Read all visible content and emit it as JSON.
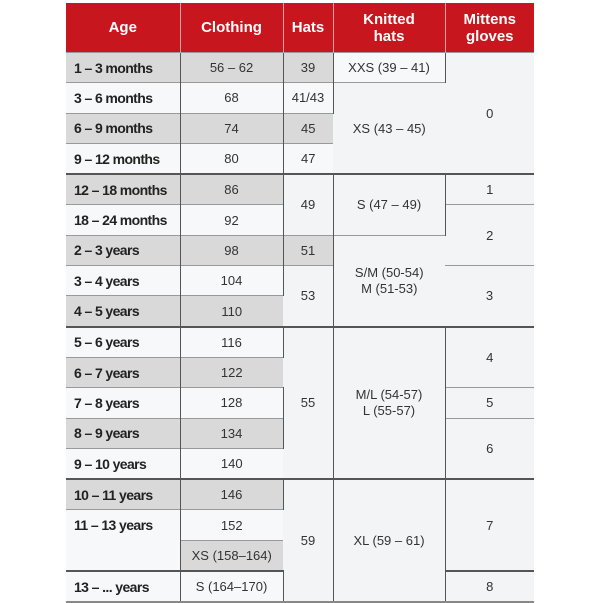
{
  "headers": {
    "age": "Age",
    "clothing": "Clothing",
    "hats": "Hats",
    "knitted_line1": "Knitted",
    "knitted_line2": "hats",
    "mittens_line1": "Mittens",
    "mittens_line2": "gloves"
  },
  "colors": {
    "header": "#c8161e",
    "shaded_row": "#d9d9d9",
    "merged_cell": "#f3f4f6"
  },
  "rows": [
    {
      "age": "1 – 3 months",
      "clothing": "56 – 62",
      "hats": "39",
      "knitted": "XXS (39 – 41)",
      "mittens": "0"
    },
    {
      "age": "3 – 6 months",
      "clothing": "68",
      "hats": "41/43",
      "knitted": "XS (43 – 45)"
    },
    {
      "age": "6 – 9 months",
      "clothing": "74",
      "hats": "45"
    },
    {
      "age": "9 – 12 months",
      "clothing": "80",
      "hats": "47"
    },
    {
      "age": "12 – 18 months",
      "clothing": "86",
      "hats": "49",
      "knitted": "S (47 – 49)",
      "mittens": "1"
    },
    {
      "age": "18 – 24 months",
      "clothing": "92",
      "mittens": "2"
    },
    {
      "age": "2 – 3 years",
      "clothing": "98",
      "hats": "51",
      "knitted_line1": "S/M (50-54)",
      "knitted_line2": "M (51-53)"
    },
    {
      "age": "3 – 4 years",
      "clothing": "104",
      "hats": "53",
      "mittens": "3"
    },
    {
      "age": "4 – 5 years",
      "clothing": "110"
    },
    {
      "age": "5 – 6 years",
      "clothing": "116",
      "hats": "55",
      "knitted_line1": "M/L (54-57)",
      "knitted_line2": "L (55-57)",
      "mittens": "4"
    },
    {
      "age": "6 – 7 years",
      "clothing": "122"
    },
    {
      "age": "7 – 8 years",
      "clothing": "128",
      "mittens": "5"
    },
    {
      "age": "8 – 9 years",
      "clothing": "134",
      "mittens": "6"
    },
    {
      "age": "9 – 10 years",
      "clothing": "140"
    },
    {
      "age": "10 – 11 years",
      "clothing": "146",
      "hats": "59",
      "knitted": "XL (59 – 61)",
      "mittens": "7"
    },
    {
      "age": "11 – 13 years",
      "clothing": "152"
    },
    {
      "clothing": "XS (158–164)"
    },
    {
      "age": "13 – ... years",
      "clothing": "S (164–170)",
      "mittens": "8"
    }
  ]
}
